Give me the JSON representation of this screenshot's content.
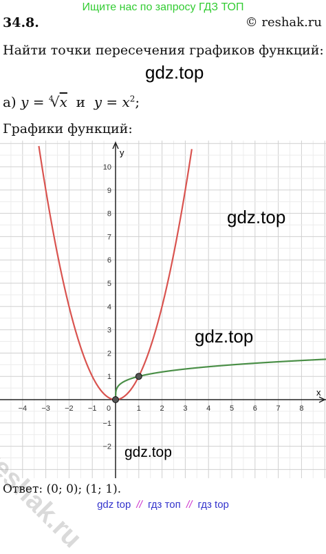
{
  "header": {
    "banner": "Ищите нас по запросу ГДЗ ТОП",
    "task_number": "34.8.",
    "copyright": "© reshak.ru"
  },
  "task": {
    "statement": "Найти точки пересечения графиков функций:",
    "part_label": "а)",
    "eq1_lhs": "y",
    "eq1_root_index": "4",
    "eq1_radicand": "x",
    "conj": "и",
    "eq2_lhs": "y",
    "eq2_rhs_base": "x",
    "eq2_rhs_exp": "2",
    "end": ";"
  },
  "graphs_label": "Графики функций:",
  "watermarks": {
    "top": "gdz.top",
    "chart_upper": "gdz.top",
    "chart_middle": "gdz.top",
    "chart_lower": "gdz.top",
    "reshak": "reshak.ru"
  },
  "chart_data": {
    "type": "line",
    "xlabel": "x",
    "ylabel": "y",
    "xlim": [
      -5,
      9
    ],
    "ylim": [
      -3,
      11
    ],
    "x_ticks": [
      -4,
      -3,
      -2,
      -1,
      0,
      1,
      2,
      3,
      4,
      5,
      6,
      7,
      8
    ],
    "y_ticks": [
      -2,
      -1,
      1,
      2,
      3,
      4,
      5,
      6,
      7,
      8,
      9,
      10
    ],
    "grid": true,
    "series": [
      {
        "function": "x^2",
        "color": "#d9534f"
      },
      {
        "function": "x^(1/4)",
        "color": "#4a8f47"
      }
    ],
    "points": [
      {
        "x": 0,
        "y": 0
      },
      {
        "x": 1,
        "y": 1
      }
    ]
  },
  "answer": "Ответ:  (0; 0);  (1; 1).",
  "footer": {
    "left": "gdz top",
    "sep1": "//",
    "middle": "гдз топ",
    "sep2": "//",
    "right": "гдз top"
  }
}
